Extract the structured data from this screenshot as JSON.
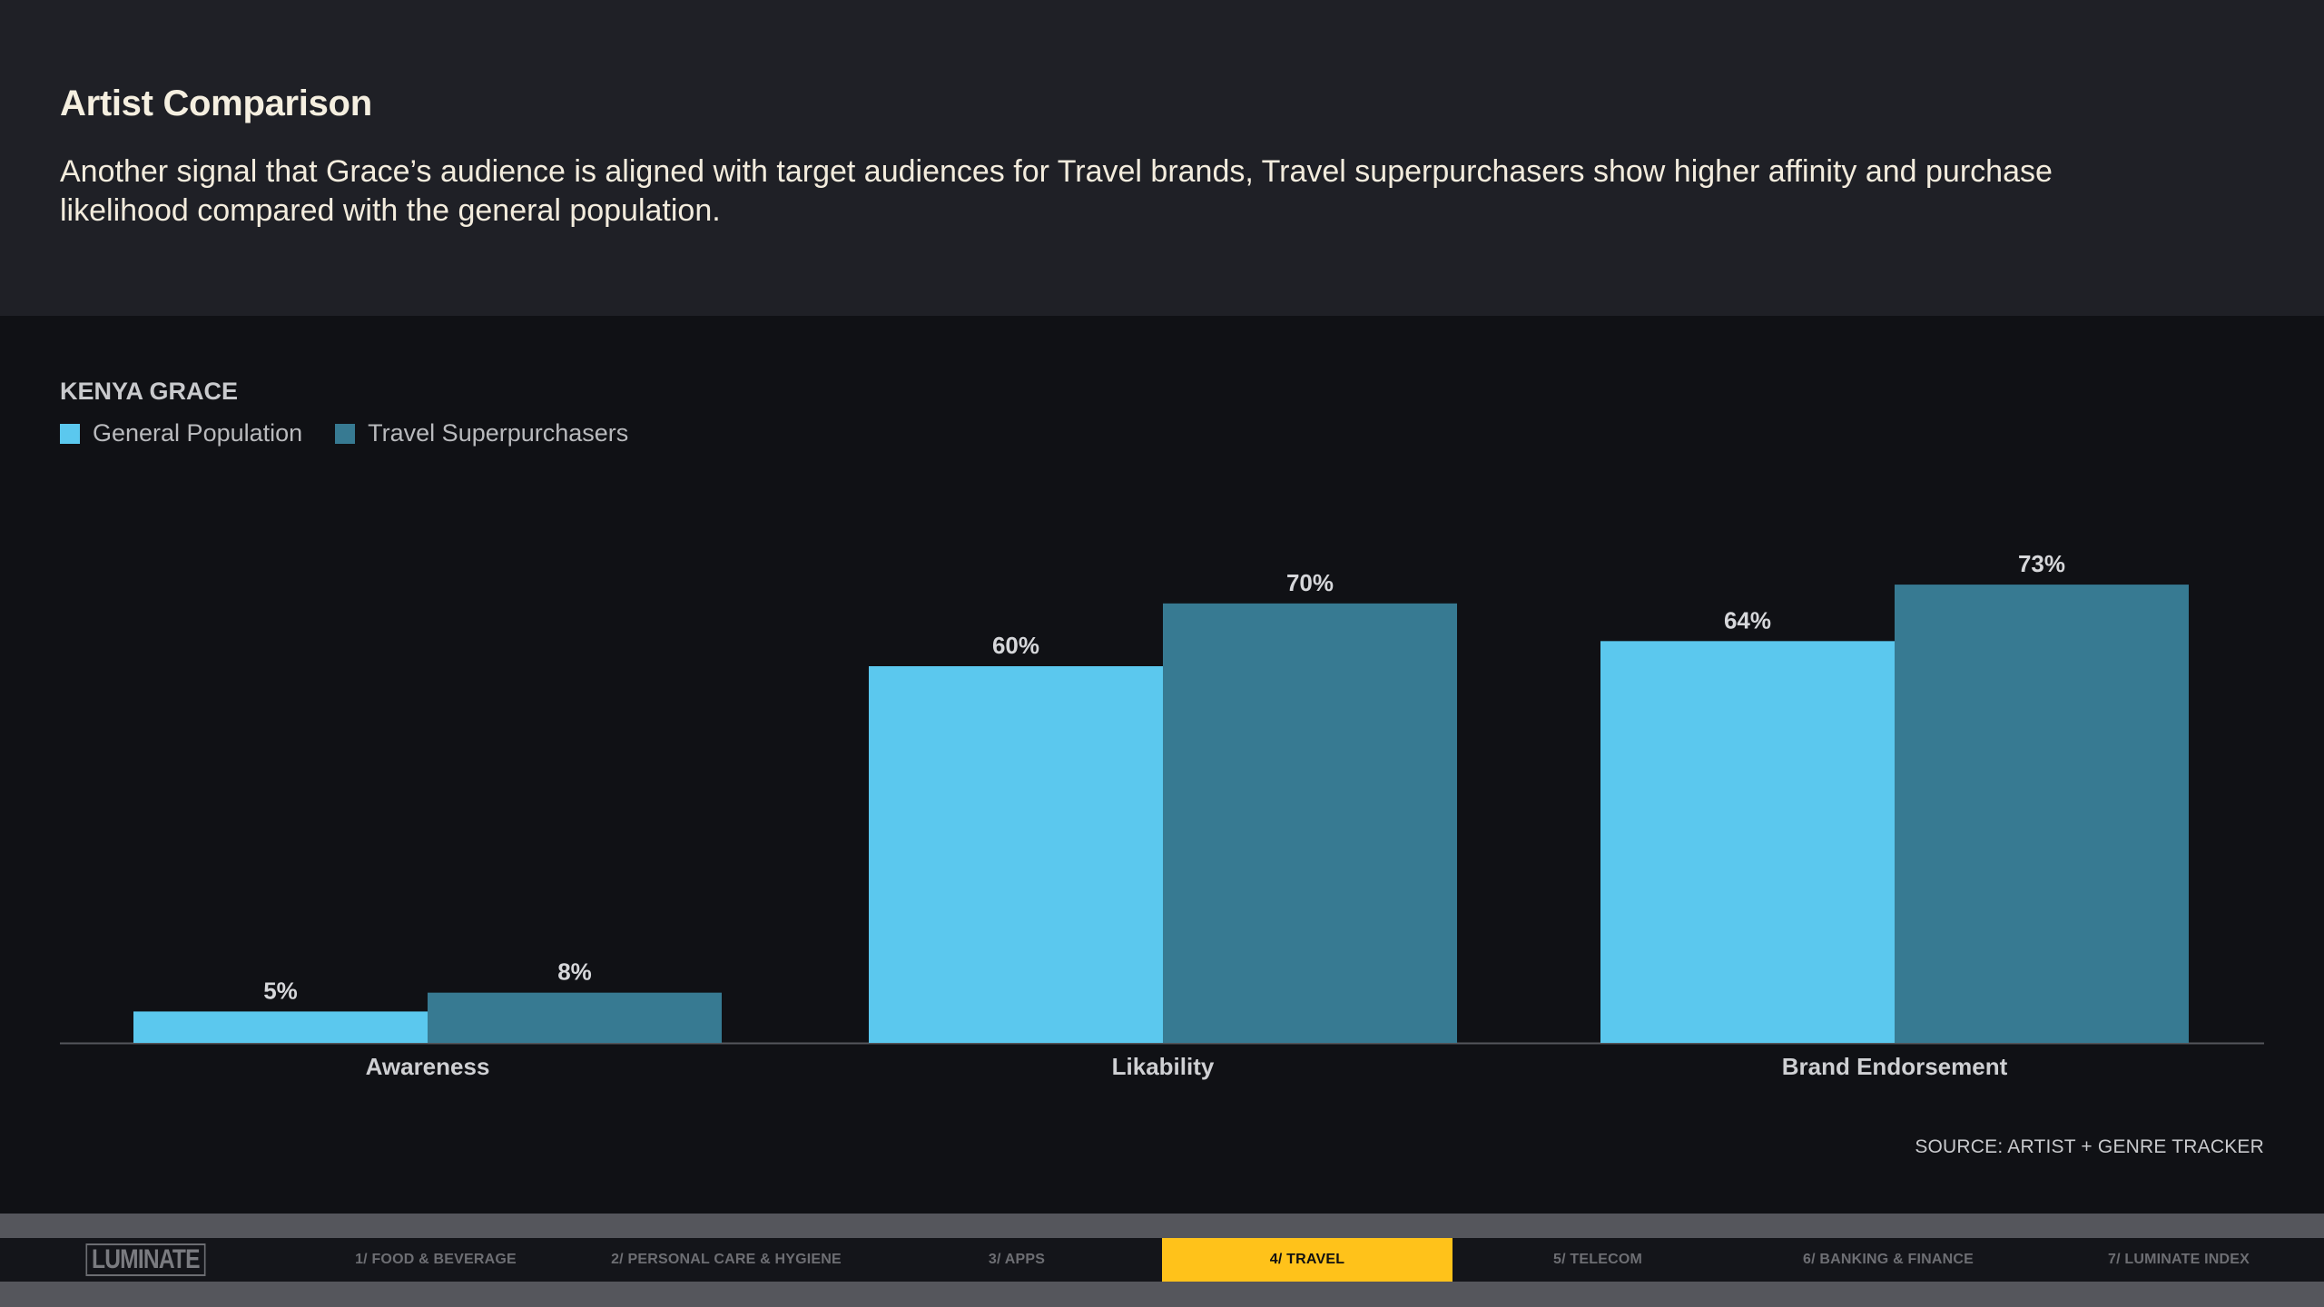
{
  "header": {
    "title": "Artist Comparison",
    "subtitle": "Another signal that Grace’s audience is aligned with target audiences for Travel brands, Travel superpurchasers show higher affinity and purchase likelihood compared with the general population."
  },
  "chart_data": {
    "type": "bar",
    "title": "KENYA GRACE",
    "categories": [
      "Awareness",
      "Likability",
      "Brand Endorsement"
    ],
    "series": [
      {
        "name": "General Population",
        "values": [
          5,
          60,
          64
        ],
        "labels": [
          "5%",
          "60%",
          "64%"
        ],
        "color": "#5bc8ee"
      },
      {
        "name": "Travel Superpurchasers",
        "values": [
          8,
          70,
          73
        ],
        "labels": [
          "8%",
          "70%",
          "73%"
        ],
        "color": "#377a92"
      }
    ],
    "ylim": [
      0,
      100
    ],
    "xlabel": "",
    "ylabel": "",
    "grid": false,
    "legend": "top-left"
  },
  "source": "SOURCE: ARTIST + GENRE TRACKER",
  "nav": {
    "logo": "LUMINATE",
    "tabs": [
      {
        "label": "1/ FOOD & BEVERAGE",
        "active": false
      },
      {
        "label": "2/ PERSONAL CARE & HYGIENE",
        "active": false
      },
      {
        "label": "3/ APPS",
        "active": false
      },
      {
        "label": "4/ TRAVEL",
        "active": true
      },
      {
        "label": "5/ TELECOM",
        "active": false
      },
      {
        "label": "6/ BANKING & FINANCE",
        "active": false
      },
      {
        "label": "7/ LUMINATE INDEX",
        "active": false
      }
    ]
  },
  "colors": {
    "header_bg": "#1f2026",
    "chart_bg": "#101115",
    "active_tab": "#ffc21a"
  }
}
